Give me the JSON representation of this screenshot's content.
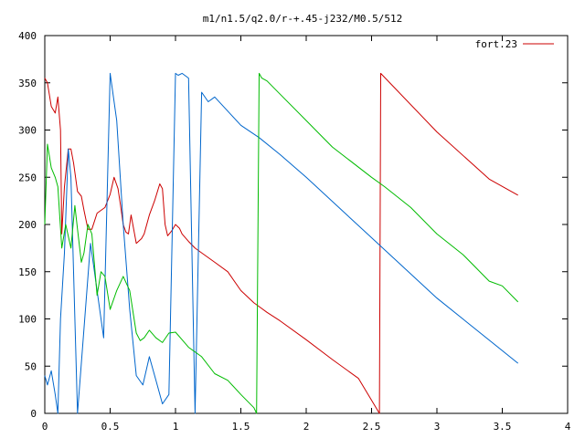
{
  "chart_data": {
    "type": "line",
    "title": "m1/n1.5/q2.0/r-+.45-j232/M0.5/512",
    "xlabel": "",
    "ylabel": "",
    "xlim": [
      0,
      4
    ],
    "ylim": [
      0,
      400
    ],
    "x_ticks": [
      "0",
      "0.5",
      "1",
      "1.5",
      "2",
      "2.5",
      "3",
      "3.5",
      "4"
    ],
    "y_ticks": [
      "0",
      "50",
      "100",
      "150",
      "200",
      "250",
      "300",
      "350",
      "400"
    ],
    "grid": false,
    "legend_position": "top-right",
    "series": [
      {
        "name": "fort.23",
        "color": "#cc0000",
        "x": [
          0.0,
          0.02,
          0.05,
          0.08,
          0.1,
          0.12,
          0.13,
          0.15,
          0.18,
          0.2,
          0.22,
          0.25,
          0.28,
          0.3,
          0.33,
          0.36,
          0.4,
          0.43,
          0.46,
          0.5,
          0.53,
          0.56,
          0.58,
          0.6,
          0.62,
          0.64,
          0.66,
          0.7,
          0.74,
          0.76,
          0.8,
          0.84,
          0.88,
          0.9,
          0.92,
          0.94,
          0.97,
          1.0,
          1.03,
          1.05,
          1.1,
          1.15,
          1.2,
          1.3,
          1.4,
          1.5,
          1.6,
          1.64,
          1.7,
          1.8,
          2.0,
          2.2,
          2.4,
          2.56,
          2.57,
          3.0,
          3.4,
          3.62
        ],
        "y": [
          355,
          350,
          325,
          318,
          335,
          300,
          190,
          240,
          280,
          280,
          265,
          235,
          230,
          215,
          195,
          195,
          212,
          215,
          218,
          232,
          250,
          238,
          220,
          200,
          192,
          190,
          210,
          180,
          185,
          190,
          210,
          225,
          243,
          238,
          200,
          188,
          193,
          200,
          196,
          190,
          182,
          175,
          170,
          160,
          150,
          130,
          117,
          113,
          107,
          98,
          78,
          57,
          37,
          0,
          360,
          298,
          248,
          231
        ]
      },
      {
        "name": "",
        "color": "#0066cc",
        "x": [
          0.0,
          0.02,
          0.05,
          0.08,
          0.1,
          0.12,
          0.15,
          0.18,
          0.2,
          0.25,
          0.3,
          0.35,
          0.4,
          0.45,
          0.5,
          0.55,
          0.6,
          0.65,
          0.7,
          0.75,
          0.8,
          0.85,
          0.9,
          0.95,
          1.0,
          1.02,
          1.05,
          1.1,
          1.15,
          1.2,
          1.25,
          1.3,
          1.4,
          1.5,
          1.64,
          1.8,
          2.0,
          2.5,
          3.0,
          3.62
        ],
        "y": [
          40,
          30,
          45,
          20,
          0,
          100,
          170,
          280,
          250,
          0,
          90,
          180,
          130,
          80,
          360,
          310,
          200,
          110,
          40,
          30,
          60,
          35,
          10,
          20,
          360,
          358,
          360,
          355,
          0,
          340,
          330,
          335,
          320,
          305,
          292,
          274,
          250,
          186,
          122,
          53
        ]
      },
      {
        "name": "",
        "color": "#00bb00",
        "x": [
          0.0,
          0.02,
          0.05,
          0.08,
          0.1,
          0.13,
          0.16,
          0.2,
          0.23,
          0.25,
          0.28,
          0.3,
          0.33,
          0.36,
          0.4,
          0.43,
          0.46,
          0.5,
          0.55,
          0.6,
          0.65,
          0.7,
          0.73,
          0.76,
          0.8,
          0.85,
          0.9,
          0.95,
          1.0,
          1.05,
          1.1,
          1.2,
          1.3,
          1.4,
          1.5,
          1.6,
          1.62,
          1.64,
          1.66,
          1.7,
          1.8,
          2.0,
          2.2,
          2.5,
          2.6,
          2.8,
          3.0,
          3.2,
          3.4,
          3.5,
          3.62
        ],
        "y": [
          200,
          285,
          260,
          250,
          240,
          175,
          200,
          175,
          220,
          195,
          160,
          170,
          200,
          190,
          125,
          150,
          145,
          110,
          130,
          145,
          130,
          85,
          77,
          80,
          88,
          80,
          75,
          85,
          86,
          78,
          70,
          60,
          42,
          35,
          20,
          6,
          0,
          360,
          355,
          352,
          338,
          310,
          282,
          250,
          240,
          218,
          190,
          168,
          140,
          135,
          118
        ]
      }
    ]
  }
}
